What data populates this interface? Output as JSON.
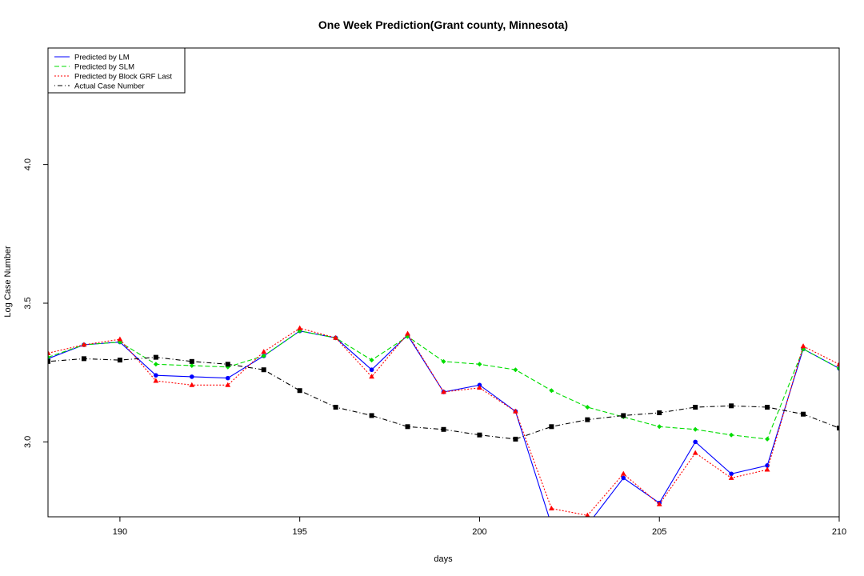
{
  "chart_data": {
    "type": "line",
    "title": "One Week Prediction(Grant county, Minnesota)",
    "xlabel": "days",
    "ylabel": "Log Case Number",
    "xlim": [
      188,
      210
    ],
    "ylim": [
      2.73,
      4.42
    ],
    "x_ticks": [
      190,
      195,
      200,
      205,
      210
    ],
    "x_tick_labels": [
      "190",
      "195",
      "200",
      "205",
      "210"
    ],
    "y_ticks": [
      3.0,
      3.5,
      4.0
    ],
    "y_tick_labels": [
      "3.0",
      "3.5",
      "4.0"
    ],
    "grid": false,
    "legend_position": "top-left",
    "x": [
      188,
      189,
      190,
      191,
      192,
      193,
      194,
      195,
      196,
      197,
      198,
      199,
      200,
      201,
      202,
      203,
      204,
      205,
      206,
      207,
      208,
      209,
      210
    ],
    "series": [
      {
        "name": "Predicted by LM",
        "color": "#0000ff",
        "line": "solid",
        "marker": "circle",
        "values": [
          3.3,
          3.35,
          3.36,
          3.24,
          3.235,
          3.23,
          3.31,
          3.4,
          3.375,
          3.26,
          3.385,
          3.18,
          3.205,
          3.11,
          2.7,
          2.7,
          2.87,
          2.78,
          3.0,
          2.885,
          2.915,
          3.335,
          3.265
        ]
      },
      {
        "name": "Predicted by SLM",
        "color": "#00dd00",
        "line": "dashed",
        "marker": "diamond",
        "values": [
          3.305,
          3.35,
          3.36,
          3.28,
          3.275,
          3.27,
          3.31,
          3.4,
          3.375,
          3.295,
          3.38,
          3.29,
          3.28,
          3.26,
          3.185,
          3.125,
          3.09,
          3.055,
          3.045,
          3.025,
          3.01,
          3.335,
          3.265
        ]
      },
      {
        "name": "Predicted by Block GRF Last",
        "color": "#ff0000",
        "line": "dotted",
        "marker": "triangle",
        "values": [
          3.32,
          3.35,
          3.37,
          3.22,
          3.205,
          3.205,
          3.325,
          3.41,
          3.375,
          3.235,
          3.39,
          3.18,
          3.195,
          3.11,
          2.76,
          2.735,
          2.885,
          2.775,
          2.96,
          2.87,
          2.9,
          3.345,
          3.28
        ]
      },
      {
        "name": "Actual Case Number",
        "color": "#000000",
        "line": "dotdash",
        "marker": "square",
        "values": [
          3.29,
          3.3,
          3.295,
          3.305,
          3.29,
          3.28,
          3.26,
          3.185,
          3.125,
          3.095,
          3.055,
          3.045,
          3.025,
          3.01,
          3.055,
          3.08,
          3.095,
          3.105,
          3.125,
          3.13,
          3.125,
          3.1,
          3.05
        ]
      }
    ]
  }
}
